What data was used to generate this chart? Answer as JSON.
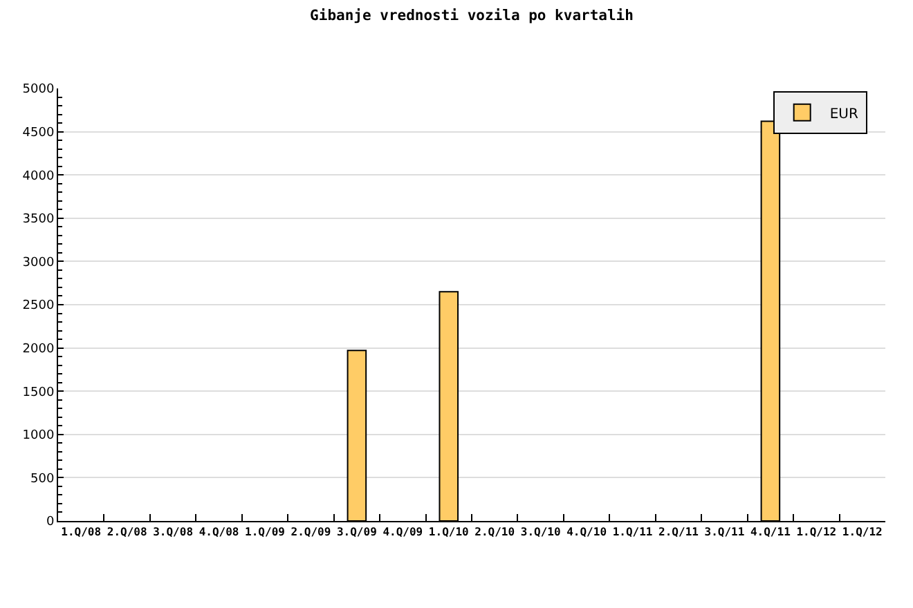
{
  "chart_data": {
    "type": "bar",
    "title": "Gibanje vrednosti vozila po kvartalih",
    "categories": [
      "1.Q/08",
      "2.Q/08",
      "3.Q/08",
      "4.Q/08",
      "1.Q/09",
      "2.Q/09",
      "3.Q/09",
      "4.Q/09",
      "1.Q/10",
      "2.Q/10",
      "3.Q/10",
      "4.Q/10",
      "1.Q/11",
      "2.Q/11",
      "3.Q/11",
      "4.Q/11",
      "1.Q/12",
      "1.Q/12"
    ],
    "series": [
      {
        "name": "EUR",
        "color": "#ffcc66",
        "values": [
          null,
          null,
          null,
          null,
          null,
          null,
          1970,
          null,
          2650,
          null,
          null,
          null,
          null,
          null,
          null,
          4620,
          null,
          null
        ]
      }
    ],
    "ylim": [
      0,
      5000
    ],
    "yticks": [
      0,
      {
        "value": 100,
        "label": null
      },
      {
        "value": 200,
        "label": null
      },
      {
        "value": 300,
        "label": null
      },
      {
        "value": 400,
        "label": null
      },
      500,
      {
        "value": 600,
        "label": null
      },
      {
        "value": 700,
        "label": null
      },
      {
        "value": 800,
        "label": null
      },
      {
        "value": 900,
        "label": null
      },
      1000,
      {
        "value": 1100,
        "label": null
      },
      {
        "value": 1200,
        "label": null
      },
      {
        "value": 1300,
        "label": null
      },
      {
        "value": 1400,
        "label": null
      },
      1500,
      {
        "value": 1600,
        "label": null
      },
      {
        "value": 1700,
        "label": null
      },
      {
        "value": 1800,
        "label": null
      },
      {
        "value": 1900,
        "label": null
      },
      2000,
      {
        "value": 2100,
        "label": null
      },
      {
        "value": 2200,
        "label": null
      },
      {
        "value": 2300,
        "label": null
      },
      {
        "value": 2400,
        "label": null
      },
      2500,
      {
        "value": 2600,
        "label": null
      },
      {
        "value": 2700,
        "label": null
      },
      {
        "value": 2800,
        "label": null
      },
      {
        "value": 2900,
        "label": null
      },
      3000,
      {
        "value": 3100,
        "label": null
      },
      {
        "value": 3200,
        "label": null
      },
      {
        "value": 3300,
        "label": null
      },
      {
        "value": 3400,
        "label": null
      },
      3500,
      {
        "value": 3600,
        "label": null
      },
      {
        "value": 3700,
        "label": null
      },
      {
        "value": 3800,
        "label": null
      },
      {
        "value": 3900,
        "label": null
      },
      4000,
      {
        "value": 4100,
        "label": null
      },
      {
        "value": 4200,
        "label": null
      },
      {
        "value": 4300,
        "label": null
      },
      {
        "value": 4400,
        "label": null
      },
      4500,
      {
        "value": 4600,
        "label": null
      },
      {
        "value": 4700,
        "label": null
      },
      {
        "value": 4800,
        "label": null
      },
      {
        "value": 4900,
        "label": null
      },
      5000
    ],
    "grid": "y",
    "legend": "top right"
  }
}
